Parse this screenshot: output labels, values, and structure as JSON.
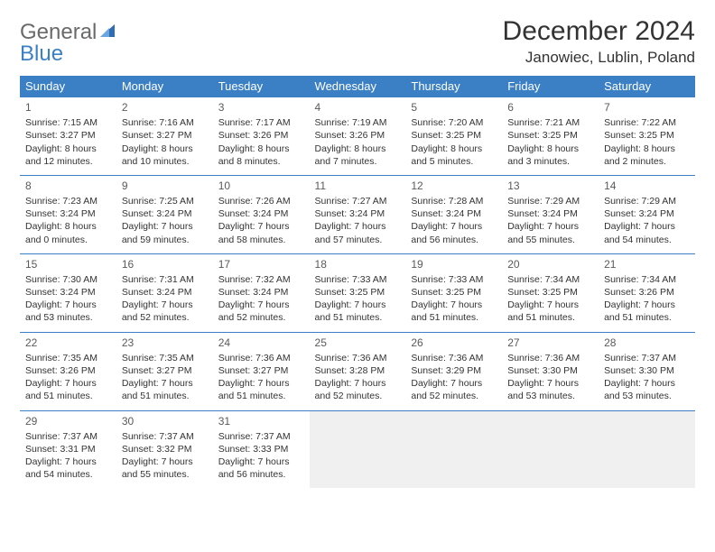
{
  "brand": {
    "part1": "General",
    "part2": "Blue"
  },
  "title": "December 2024",
  "location": "Janowiec, Lublin, Poland",
  "colors": {
    "header_bg": "#3b7fc4",
    "header_text": "#ffffff",
    "border": "#3b7fc4",
    "text": "#333333",
    "logo_gray": "#6a6a6a",
    "logo_blue": "#3b7fc4",
    "empty_bg": "#f0f0f0"
  },
  "weekdays": [
    "Sunday",
    "Monday",
    "Tuesday",
    "Wednesday",
    "Thursday",
    "Friday",
    "Saturday"
  ],
  "weeks": [
    [
      {
        "n": "1",
        "sr": "7:15 AM",
        "ss": "3:27 PM",
        "dl": "8 hours and 12 minutes."
      },
      {
        "n": "2",
        "sr": "7:16 AM",
        "ss": "3:27 PM",
        "dl": "8 hours and 10 minutes."
      },
      {
        "n": "3",
        "sr": "7:17 AM",
        "ss": "3:26 PM",
        "dl": "8 hours and 8 minutes."
      },
      {
        "n": "4",
        "sr": "7:19 AM",
        "ss": "3:26 PM",
        "dl": "8 hours and 7 minutes."
      },
      {
        "n": "5",
        "sr": "7:20 AM",
        "ss": "3:25 PM",
        "dl": "8 hours and 5 minutes."
      },
      {
        "n": "6",
        "sr": "7:21 AM",
        "ss": "3:25 PM",
        "dl": "8 hours and 3 minutes."
      },
      {
        "n": "7",
        "sr": "7:22 AM",
        "ss": "3:25 PM",
        "dl": "8 hours and 2 minutes."
      }
    ],
    [
      {
        "n": "8",
        "sr": "7:23 AM",
        "ss": "3:24 PM",
        "dl": "8 hours and 0 minutes."
      },
      {
        "n": "9",
        "sr": "7:25 AM",
        "ss": "3:24 PM",
        "dl": "7 hours and 59 minutes."
      },
      {
        "n": "10",
        "sr": "7:26 AM",
        "ss": "3:24 PM",
        "dl": "7 hours and 58 minutes."
      },
      {
        "n": "11",
        "sr": "7:27 AM",
        "ss": "3:24 PM",
        "dl": "7 hours and 57 minutes."
      },
      {
        "n": "12",
        "sr": "7:28 AM",
        "ss": "3:24 PM",
        "dl": "7 hours and 56 minutes."
      },
      {
        "n": "13",
        "sr": "7:29 AM",
        "ss": "3:24 PM",
        "dl": "7 hours and 55 minutes."
      },
      {
        "n": "14",
        "sr": "7:29 AM",
        "ss": "3:24 PM",
        "dl": "7 hours and 54 minutes."
      }
    ],
    [
      {
        "n": "15",
        "sr": "7:30 AM",
        "ss": "3:24 PM",
        "dl": "7 hours and 53 minutes."
      },
      {
        "n": "16",
        "sr": "7:31 AM",
        "ss": "3:24 PM",
        "dl": "7 hours and 52 minutes."
      },
      {
        "n": "17",
        "sr": "7:32 AM",
        "ss": "3:24 PM",
        "dl": "7 hours and 52 minutes."
      },
      {
        "n": "18",
        "sr": "7:33 AM",
        "ss": "3:25 PM",
        "dl": "7 hours and 51 minutes."
      },
      {
        "n": "19",
        "sr": "7:33 AM",
        "ss": "3:25 PM",
        "dl": "7 hours and 51 minutes."
      },
      {
        "n": "20",
        "sr": "7:34 AM",
        "ss": "3:25 PM",
        "dl": "7 hours and 51 minutes."
      },
      {
        "n": "21",
        "sr": "7:34 AM",
        "ss": "3:26 PM",
        "dl": "7 hours and 51 minutes."
      }
    ],
    [
      {
        "n": "22",
        "sr": "7:35 AM",
        "ss": "3:26 PM",
        "dl": "7 hours and 51 minutes."
      },
      {
        "n": "23",
        "sr": "7:35 AM",
        "ss": "3:27 PM",
        "dl": "7 hours and 51 minutes."
      },
      {
        "n": "24",
        "sr": "7:36 AM",
        "ss": "3:27 PM",
        "dl": "7 hours and 51 minutes."
      },
      {
        "n": "25",
        "sr": "7:36 AM",
        "ss": "3:28 PM",
        "dl": "7 hours and 52 minutes."
      },
      {
        "n": "26",
        "sr": "7:36 AM",
        "ss": "3:29 PM",
        "dl": "7 hours and 52 minutes."
      },
      {
        "n": "27",
        "sr": "7:36 AM",
        "ss": "3:30 PM",
        "dl": "7 hours and 53 minutes."
      },
      {
        "n": "28",
        "sr": "7:37 AM",
        "ss": "3:30 PM",
        "dl": "7 hours and 53 minutes."
      }
    ],
    [
      {
        "n": "29",
        "sr": "7:37 AM",
        "ss": "3:31 PM",
        "dl": "7 hours and 54 minutes."
      },
      {
        "n": "30",
        "sr": "7:37 AM",
        "ss": "3:32 PM",
        "dl": "7 hours and 55 minutes."
      },
      {
        "n": "31",
        "sr": "7:37 AM",
        "ss": "3:33 PM",
        "dl": "7 hours and 56 minutes."
      },
      null,
      null,
      null,
      null
    ]
  ],
  "labels": {
    "sunrise": "Sunrise:",
    "sunset": "Sunset:",
    "daylight": "Daylight:"
  }
}
